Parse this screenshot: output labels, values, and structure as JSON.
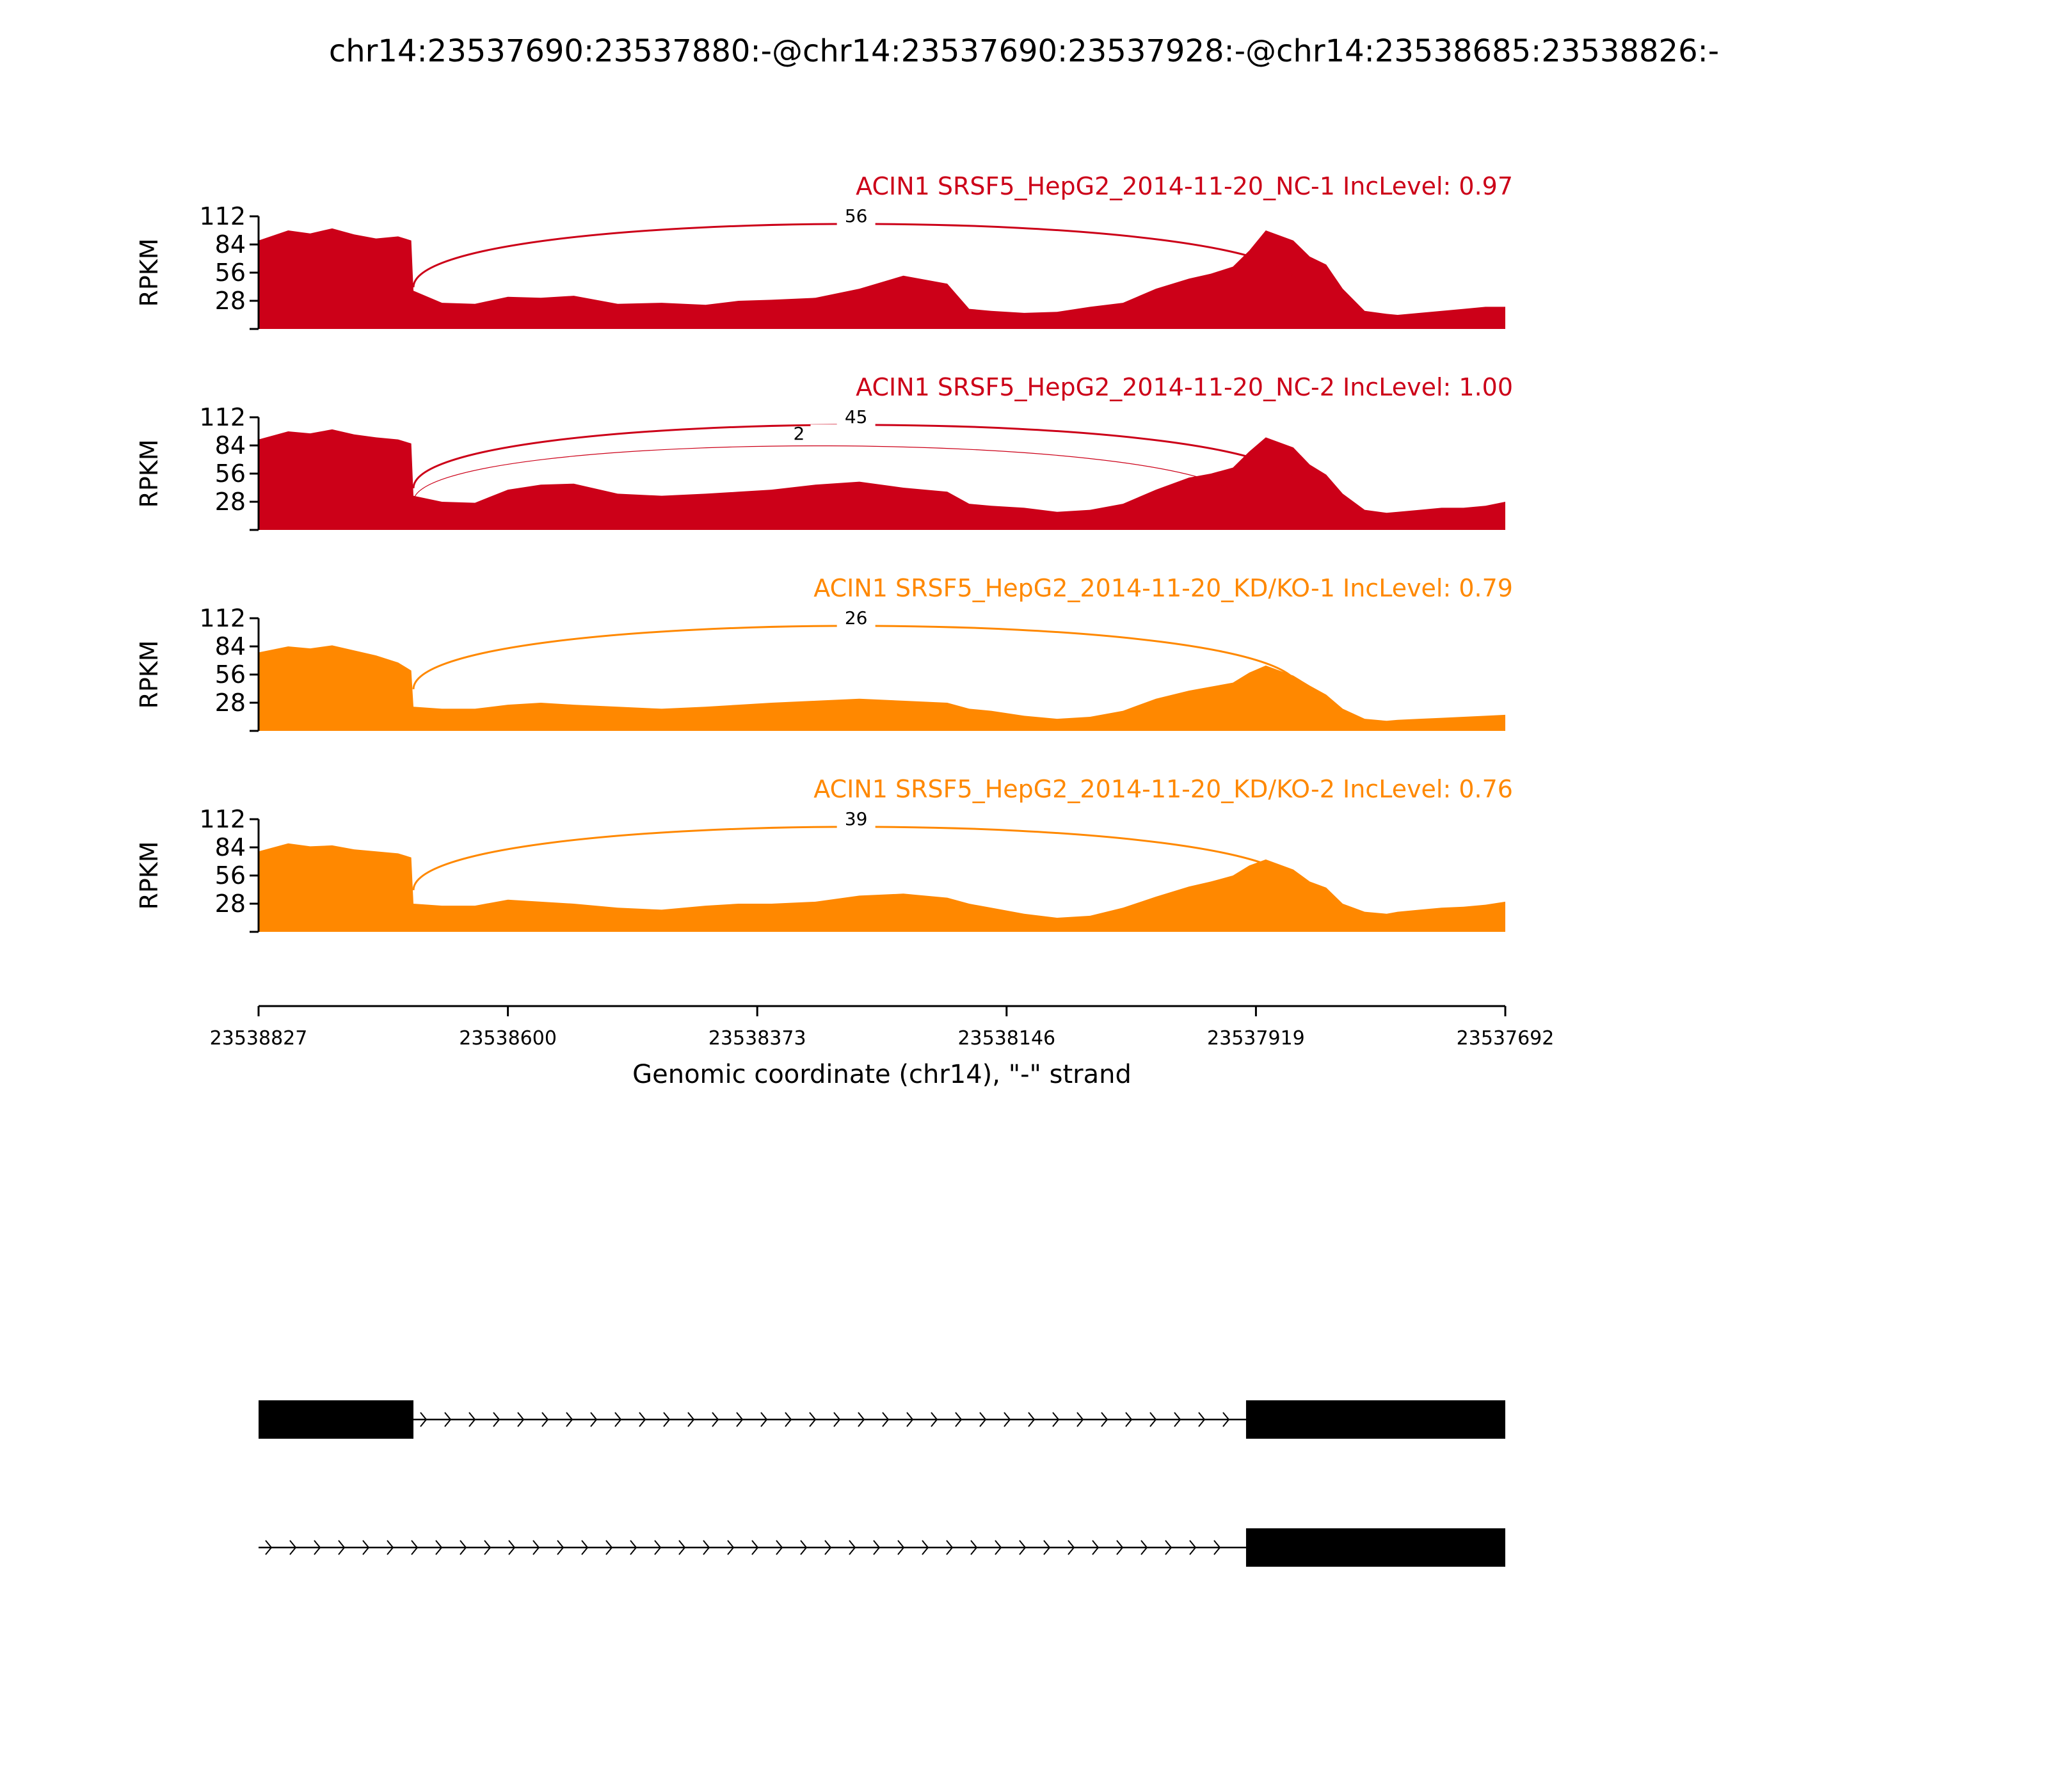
{
  "title": "chr14:23537690:23537880:-@chr14:23537690:23537928:-@chr14:23538685:23538826:-",
  "axis": {
    "ylabel": "RPKM",
    "yticks": [
      28,
      56,
      84,
      112
    ],
    "ylim": [
      0,
      112
    ],
    "xlabel": "Genomic coordinate (chr14), \"-\" strand",
    "xticks": [
      "23538827",
      "23538600",
      "23538373",
      "23538146",
      "23537919",
      "23537692"
    ],
    "xlim": [
      23538827,
      23537692
    ]
  },
  "colors": {
    "nc": "#cc0018",
    "kd": "#ff8800",
    "gene": "#000000"
  },
  "chart_data": {
    "type": "area",
    "x": [
      23538827,
      23538800,
      23538780,
      23538760,
      23538740,
      23538720,
      23538700,
      23538688,
      23538686,
      23538660,
      23538630,
      23538600,
      23538570,
      23538540,
      23538500,
      23538460,
      23538420,
      23538390,
      23538360,
      23538320,
      23538280,
      23538240,
      23538200,
      23538180,
      23538160,
      23538130,
      23538100,
      23538070,
      23538040,
      23538010,
      23537980,
      23537960,
      23537940,
      23537925,
      23537910,
      23537885,
      23537870,
      23537855,
      23537840,
      23537820,
      23537800,
      23537790,
      23537770,
      23537750,
      23537730,
      23537710,
      23537692
    ],
    "series": [
      {
        "name": "ACIN1 SRSF5_HepG2_2014-11-20_NC-1 IncLevel: 0.97",
        "group": "nc",
        "values": [
          88,
          98,
          95,
          100,
          94,
          90,
          92,
          88,
          38,
          26,
          25,
          32,
          31,
          33,
          25,
          26,
          24,
          28,
          29,
          31,
          40,
          53,
          45,
          20,
          18,
          16,
          17,
          22,
          26,
          40,
          50,
          55,
          62,
          78,
          98,
          88,
          72,
          64,
          40,
          18,
          15,
          14,
          16,
          18,
          20,
          22,
          22
        ],
        "junctions": [
          {
            "from": 23538686,
            "to": 23537880,
            "count": "56"
          }
        ]
      },
      {
        "name": "ACIN1 SRSF5_HepG2_2014-11-20_NC-2 IncLevel: 1.00",
        "group": "nc",
        "values": [
          90,
          98,
          96,
          100,
          95,
          92,
          90,
          86,
          34,
          28,
          27,
          40,
          45,
          46,
          36,
          34,
          36,
          38,
          40,
          45,
          48,
          42,
          38,
          26,
          24,
          22,
          18,
          20,
          26,
          40,
          52,
          56,
          62,
          78,
          92,
          82,
          65,
          55,
          36,
          20,
          17,
          18,
          20,
          22,
          22,
          24,
          28
        ],
        "junctions": [
          {
            "from": 23538686,
            "to": 23537880,
            "count": "45"
          },
          {
            "from": 23538686,
            "to": 23537928,
            "count": "2"
          }
        ]
      },
      {
        "name": "ACIN1 SRSF5_HepG2_2014-11-20_KD/KO-1 IncLevel: 0.79",
        "group": "kd",
        "values": [
          78,
          84,
          82,
          85,
          80,
          75,
          68,
          60,
          24,
          22,
          22,
          26,
          28,
          26,
          24,
          22,
          24,
          26,
          28,
          30,
          32,
          30,
          28,
          22,
          20,
          15,
          12,
          14,
          20,
          32,
          40,
          44,
          48,
          58,
          65,
          55,
          45,
          36,
          22,
          12,
          10,
          11,
          12,
          13,
          14,
          15,
          16
        ],
        "junctions": [
          {
            "from": 23538686,
            "to": 23537880,
            "count": "26"
          }
        ]
      },
      {
        "name": "ACIN1 SRSF5_HepG2_2014-11-20_KD/KO-2 IncLevel: 0.76",
        "group": "kd",
        "values": [
          80,
          88,
          85,
          86,
          82,
          80,
          78,
          74,
          28,
          26,
          26,
          32,
          30,
          28,
          24,
          22,
          26,
          28,
          28,
          30,
          36,
          38,
          34,
          28,
          24,
          18,
          14,
          16,
          24,
          35,
          45,
          50,
          56,
          66,
          72,
          62,
          50,
          44,
          28,
          20,
          18,
          20,
          22,
          24,
          25,
          27,
          30
        ],
        "junctions": [
          {
            "from": 23538686,
            "to": 23537880,
            "count": "39"
          }
        ]
      }
    ]
  },
  "gene_models": [
    {
      "exons": [
        [
          23538827,
          23538686
        ],
        [
          23537928,
          23537692
        ]
      ]
    },
    {
      "exons": [
        [
          23537928,
          23537692
        ]
      ],
      "intron_from": 23538827
    }
  ]
}
